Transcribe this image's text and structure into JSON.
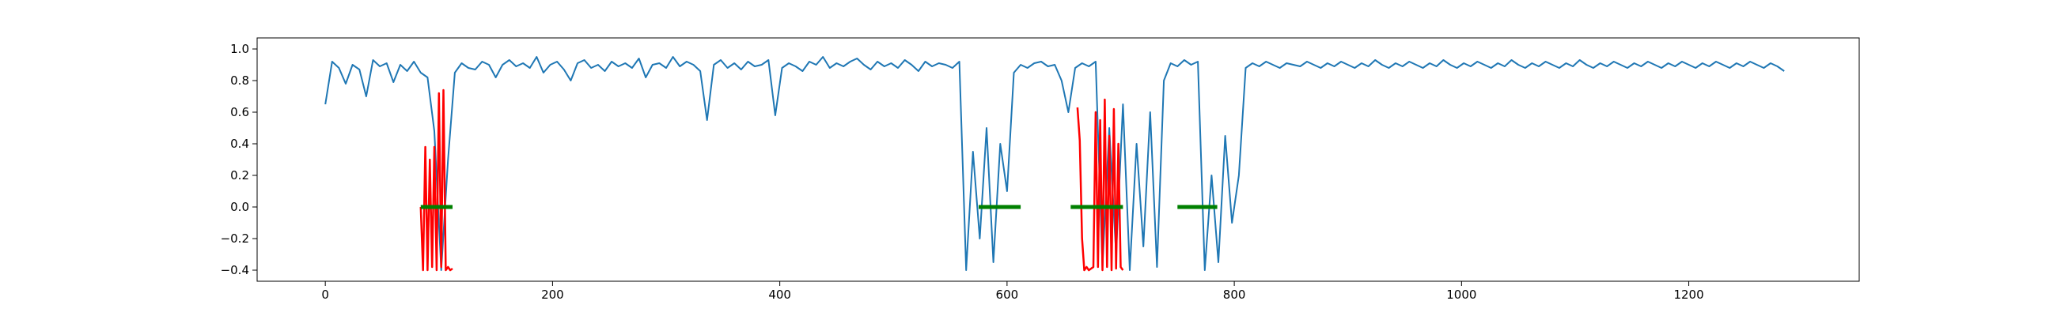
{
  "chart_data": {
    "type": "line",
    "title": "",
    "xlabel": "",
    "ylabel": "",
    "xlim": [
      -60,
      1350
    ],
    "ylim": [
      -0.47,
      1.07
    ],
    "x_ticks": [
      0,
      200,
      400,
      600,
      800,
      1000,
      1200
    ],
    "x_tick_labels": [
      "0",
      "200",
      "400",
      "600",
      "800",
      "1000",
      "1200"
    ],
    "y_ticks": [
      -0.4,
      -0.2,
      0.0,
      0.2,
      0.4,
      0.6,
      0.8,
      1.0
    ],
    "y_tick_labels": [
      "−0.4",
      "−0.2",
      "0.0",
      "0.2",
      "0.4",
      "0.6",
      "0.8",
      "1.0"
    ],
    "grid": false,
    "legend": "none",
    "series": [
      {
        "color": "#1f77b4",
        "x_start": 0,
        "step": 6,
        "values": [
          0.65,
          0.92,
          0.88,
          0.78,
          0.9,
          0.87,
          0.7,
          0.93,
          0.89,
          0.91,
          0.79,
          0.9,
          0.86,
          0.92,
          0.85,
          0.82,
          0.48,
          -0.4,
          0.3,
          0.85,
          0.91,
          0.88,
          0.87,
          0.92,
          0.9,
          0.82,
          0.9,
          0.93,
          0.89,
          0.91,
          0.88,
          0.95,
          0.85,
          0.9,
          0.92,
          0.87,
          0.8,
          0.91,
          0.93,
          0.88,
          0.9,
          0.86,
          0.92,
          0.89,
          0.91,
          0.88,
          0.94,
          0.82,
          0.9,
          0.91,
          0.88,
          0.95,
          0.89,
          0.92,
          0.9,
          0.86,
          0.55,
          0.9,
          0.93,
          0.88,
          0.91,
          0.87,
          0.92,
          0.89,
          0.9,
          0.93,
          0.58,
          0.88,
          0.91,
          0.89,
          0.86,
          0.92,
          0.9,
          0.95,
          0.88,
          0.91,
          0.89,
          0.92,
          0.94,
          0.9,
          0.87,
          0.92,
          0.89,
          0.91,
          0.88,
          0.93,
          0.9,
          0.86,
          0.92,
          0.89,
          0.91,
          0.9,
          0.88,
          0.92,
          -0.4,
          0.35,
          -0.2,
          0.5,
          -0.35,
          0.4,
          0.1,
          0.85,
          0.9,
          0.88,
          0.91,
          0.92,
          0.89,
          0.9,
          0.8,
          0.6,
          0.88,
          0.91,
          0.89,
          0.92,
          -0.38,
          0.5,
          -0.3,
          0.65,
          -0.4,
          0.4,
          -0.25,
          0.6,
          -0.38,
          0.8,
          0.91,
          0.89,
          0.93,
          0.9,
          0.92,
          -0.4,
          0.2,
          -0.35,
          0.45,
          -0.1,
          0.2,
          0.88,
          0.91,
          0.89,
          0.92,
          0.9,
          0.88,
          0.91,
          0.9,
          0.89,
          0.92,
          0.9,
          0.88,
          0.91,
          0.89,
          0.92,
          0.9,
          0.88,
          0.91,
          0.89,
          0.93,
          0.9,
          0.88,
          0.91,
          0.89,
          0.92,
          0.9,
          0.88,
          0.91,
          0.89,
          0.93,
          0.9,
          0.88,
          0.91,
          0.89,
          0.92,
          0.9,
          0.88,
          0.91,
          0.89,
          0.93,
          0.9,
          0.88,
          0.91,
          0.89,
          0.92,
          0.9,
          0.88,
          0.91,
          0.89,
          0.93,
          0.9,
          0.88,
          0.91,
          0.89,
          0.92,
          0.9,
          0.88,
          0.91,
          0.89,
          0.92,
          0.9,
          0.88,
          0.91,
          0.89,
          0.92,
          0.9,
          0.88,
          0.91,
          0.89,
          0.92,
          0.9,
          0.88,
          0.91,
          0.89,
          0.92,
          0.9,
          0.88,
          0.91,
          0.89,
          0.86
        ]
      },
      {
        "color": "#ff0000",
        "segments": [
          {
            "x": [
              84,
              86,
              88,
              90,
              92,
              94,
              96,
              98,
              100,
              102,
              104,
              106,
              108,
              110,
              112
            ],
            "y": [
              0.0,
              -0.4,
              0.38,
              -0.4,
              0.3,
              -0.38,
              0.38,
              -0.4,
              0.72,
              -0.38,
              0.74,
              -0.4,
              -0.38,
              -0.4,
              -0.39
            ]
          },
          {
            "x": [
              662,
              664,
              666,
              668,
              670,
              672,
              674,
              676,
              678,
              680,
              682,
              684,
              686,
              688,
              690,
              692,
              694,
              696,
              698,
              700,
              702
            ],
            "y": [
              0.63,
              0.42,
              -0.2,
              -0.4,
              -0.38,
              -0.4,
              -0.39,
              -0.38,
              0.6,
              -0.38,
              0.55,
              -0.4,
              0.68,
              -0.38,
              0.45,
              -0.4,
              0.62,
              -0.39,
              0.4,
              -0.38,
              -0.4
            ]
          }
        ]
      },
      {
        "color": "#008000",
        "segments": [
          {
            "x": [
              84,
              112
            ],
            "y": [
              0.0,
              0.0
            ]
          },
          {
            "x": [
              575,
              612
            ],
            "y": [
              0.0,
              0.0
            ]
          },
          {
            "x": [
              656,
              702
            ],
            "y": [
              0.0,
              0.0
            ]
          },
          {
            "x": [
              750,
              785
            ],
            "y": [
              0.0,
              0.0
            ]
          }
        ]
      }
    ]
  }
}
